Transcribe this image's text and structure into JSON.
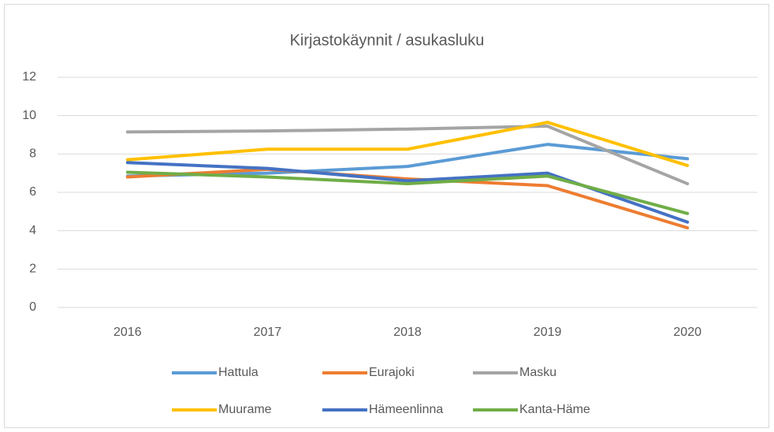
{
  "chart_data": {
    "type": "line",
    "title": "Kirjastokäynnit / asukasluku",
    "categories": [
      "2016",
      "2017",
      "2018",
      "2019",
      "2020"
    ],
    "series": [
      {
        "name": "Hattula",
        "color": "#5b9bd5",
        "values": [
          6.85,
          7.0,
          7.35,
          8.5,
          7.75
        ]
      },
      {
        "name": "Eurajoki",
        "color": "#ed7d31",
        "values": [
          6.8,
          7.2,
          6.7,
          6.35,
          4.15
        ]
      },
      {
        "name": "Masku",
        "color": "#a5a5a5",
        "values": [
          9.15,
          9.2,
          9.3,
          9.45,
          6.45
        ]
      },
      {
        "name": "Muurame",
        "color": "#ffc000",
        "values": [
          7.7,
          8.25,
          8.25,
          9.65,
          7.4
        ]
      },
      {
        "name": "Hämeenlinna",
        "color": "#4472c4",
        "values": [
          7.55,
          7.25,
          6.6,
          7.0,
          4.45
        ]
      },
      {
        "name": "Kanta-Häme",
        "color": "#70ad47",
        "values": [
          7.05,
          6.8,
          6.45,
          6.85,
          4.9
        ]
      }
    ],
    "ylim": [
      0,
      12
    ],
    "yticks": [
      0,
      2,
      4,
      6,
      8,
      10,
      12
    ],
    "grid": true,
    "legend": "bottom"
  }
}
